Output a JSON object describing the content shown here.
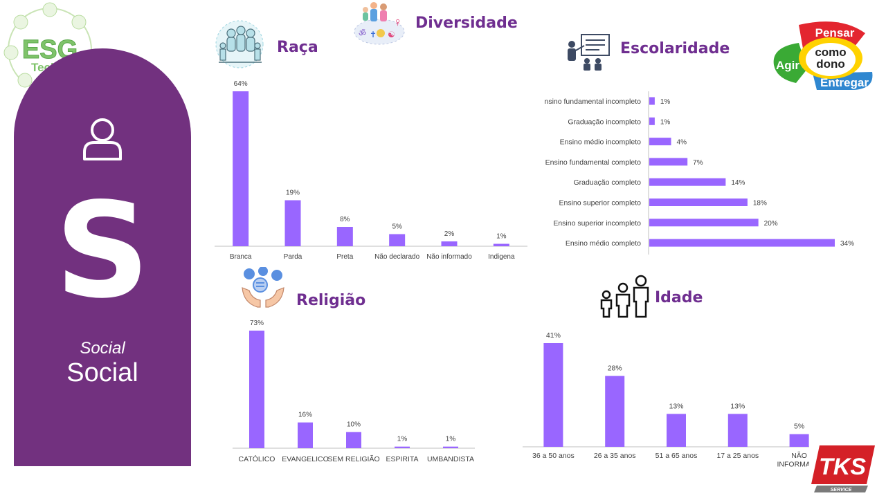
{
  "sidebar": {
    "letter": "S",
    "subtitle_italic": "Social",
    "subtitle": "Social",
    "icon": "user-icon"
  },
  "logo_esg": {
    "text_main": "ESG",
    "text_sub": "Teckma"
  },
  "logo_values": {
    "top": "Pensar",
    "left": "Agir",
    "center_1": "como",
    "center_2": "dono",
    "bottom": "Entregar"
  },
  "logo_tks": {
    "main": "TKS",
    "sub": "SERVICE"
  },
  "colors": {
    "bar": "#9966ff",
    "title": "#6f2e90",
    "panel": "#72317f",
    "axis": "#bfbfbf"
  },
  "sections": {
    "raca": "Raça",
    "diversidade": "Diversidade",
    "escolaridade": "Escolaridade",
    "religiao": "Religião",
    "idade": "Idade"
  },
  "chart_data": [
    {
      "id": "raca",
      "type": "bar",
      "title": "Raça",
      "categories": [
        "Branca",
        "Parda",
        "Preta",
        "Não declarado",
        "Não informado",
        "Indigena"
      ],
      "values": [
        64,
        19,
        8,
        5,
        2,
        1
      ],
      "labels": [
        "64%",
        "19%",
        "8%",
        "5%",
        "2%",
        "1%"
      ],
      "ylim": [
        0,
        64
      ]
    },
    {
      "id": "escolaridade",
      "type": "bar",
      "orientation": "horizontal",
      "title": "Escolaridade",
      "categories": [
        "nsino fundamental incompleto",
        "Graduação incompleto",
        "Ensino médio incompleto",
        "Ensino fundamental completo",
        "Graduação completo",
        "Ensino superior completo",
        "Ensino superior incompleto",
        "Ensino médio completo"
      ],
      "values": [
        1,
        1,
        4,
        7,
        14,
        18,
        20,
        34
      ],
      "labels": [
        "1%",
        "1%",
        "4%",
        "7%",
        "14%",
        "18%",
        "20%",
        "34%"
      ],
      "xlim": [
        0,
        34
      ]
    },
    {
      "id": "religiao",
      "type": "bar",
      "title": "Religião",
      "categories": [
        "CATÓLICO",
        "EVANGELICO",
        "SEM RELIGIÃO",
        "ESPIRITA",
        "UMBANDISTA"
      ],
      "values": [
        73,
        16,
        10,
        1,
        1
      ],
      "labels": [
        "73%",
        "16%",
        "10%",
        "1%",
        "1%"
      ],
      "ylim": [
        0,
        73
      ]
    },
    {
      "id": "idade",
      "type": "bar",
      "title": "Idade",
      "categories": [
        "36 a 50 anos",
        "26 a 35 anos",
        "51 a 65 anos",
        "17 a 25 anos",
        "NÃO INFORMADO"
      ],
      "values": [
        41,
        28,
        13,
        13,
        5
      ],
      "labels": [
        "41%",
        "28%",
        "13%",
        "13%",
        "5%"
      ],
      "ylim": [
        0,
        41
      ]
    }
  ]
}
